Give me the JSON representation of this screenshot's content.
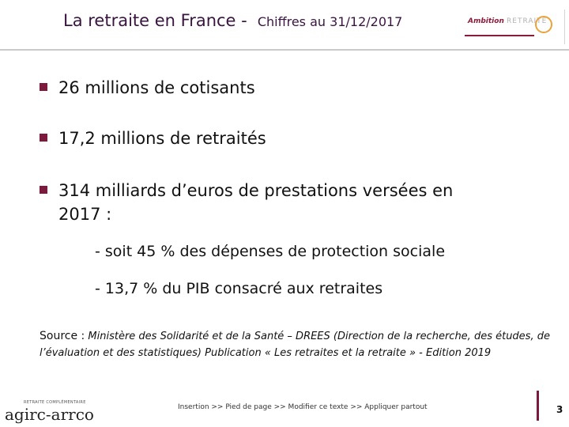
{
  "header": {
    "title": "La retraite en France -",
    "subtitle": "Chiffres au 31/12/2017",
    "logo_bold": "Ambition",
    "logo_light": "RETRAITE"
  },
  "bullets": [
    {
      "text": "26 millions de cotisants"
    },
    {
      "text": "17,2 millions de retraités"
    },
    {
      "text": "314 milliards d’euros de prestations versées en",
      "continuation": "2017 :"
    }
  ],
  "sub_items": [
    {
      "text": "- soit 45 % des dépenses de protection sociale"
    },
    {
      "text": "- 13,7 % du PIB consacré aux retraites"
    }
  ],
  "source": {
    "label": "Source :",
    "text": "Ministère des Solidarité et de la Santé – DREES (Direction de la recherche, des études, de   l’évaluation et des statistiques)  Publication « Les retraites et la retraite »  -  Edition 2019"
  },
  "footer": {
    "logo_tagline": "RETRAITE COMPLÉMENTAIRE",
    "logo_name": "agirc-arrco",
    "text": "Insertion >> Pied de page >> Modifier ce texte >> Appliquer partout",
    "page_number": "3"
  },
  "colors": {
    "title": "#3a1440",
    "accent": "#7b1a3d",
    "logo_ring": "#e8a33c"
  }
}
